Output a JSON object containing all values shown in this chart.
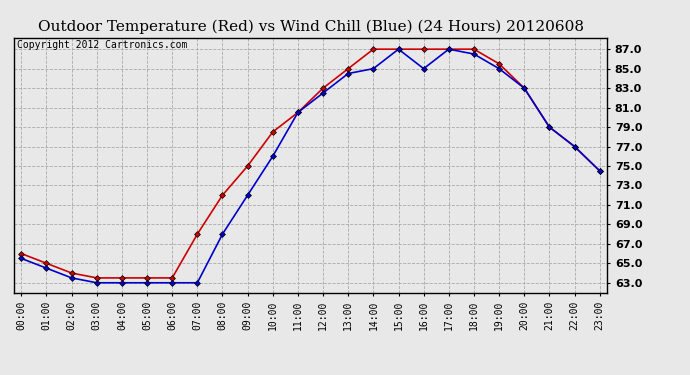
{
  "title": "Outdoor Temperature (Red) vs Wind Chill (Blue) (24 Hours) 20120608",
  "copyright": "Copyright 2012 Cartronics.com",
  "hours": [
    0,
    1,
    2,
    3,
    4,
    5,
    6,
    7,
    8,
    9,
    10,
    11,
    12,
    13,
    14,
    15,
    16,
    17,
    18,
    19,
    20,
    21,
    22,
    23
  ],
  "temp_red": [
    66.0,
    65.0,
    64.0,
    63.5,
    63.5,
    63.5,
    63.5,
    68.0,
    72.0,
    75.0,
    78.5,
    80.5,
    83.0,
    85.0,
    87.0,
    87.0,
    87.0,
    87.0,
    87.0,
    85.5,
    83.0,
    79.0,
    77.0,
    74.5
  ],
  "wind_blue": [
    65.5,
    64.5,
    63.5,
    63.0,
    63.0,
    63.0,
    63.0,
    63.0,
    68.0,
    72.0,
    76.0,
    80.5,
    82.5,
    84.5,
    85.0,
    87.0,
    85.0,
    87.0,
    86.5,
    85.0,
    83.0,
    79.0,
    77.0,
    74.5
  ],
  "ylim": [
    62.0,
    88.2
  ],
  "yticks": [
    63.0,
    65.0,
    67.0,
    69.0,
    71.0,
    73.0,
    75.0,
    77.0,
    79.0,
    81.0,
    83.0,
    85.0,
    87.0
  ],
  "red_color": "#cc0000",
  "blue_color": "#0000cc",
  "bg_color": "#e8e8e8",
  "plot_bg": "#e8e8e8",
  "grid_color": "#aaaaaa",
  "title_fontsize": 11,
  "copyright_fontsize": 7
}
